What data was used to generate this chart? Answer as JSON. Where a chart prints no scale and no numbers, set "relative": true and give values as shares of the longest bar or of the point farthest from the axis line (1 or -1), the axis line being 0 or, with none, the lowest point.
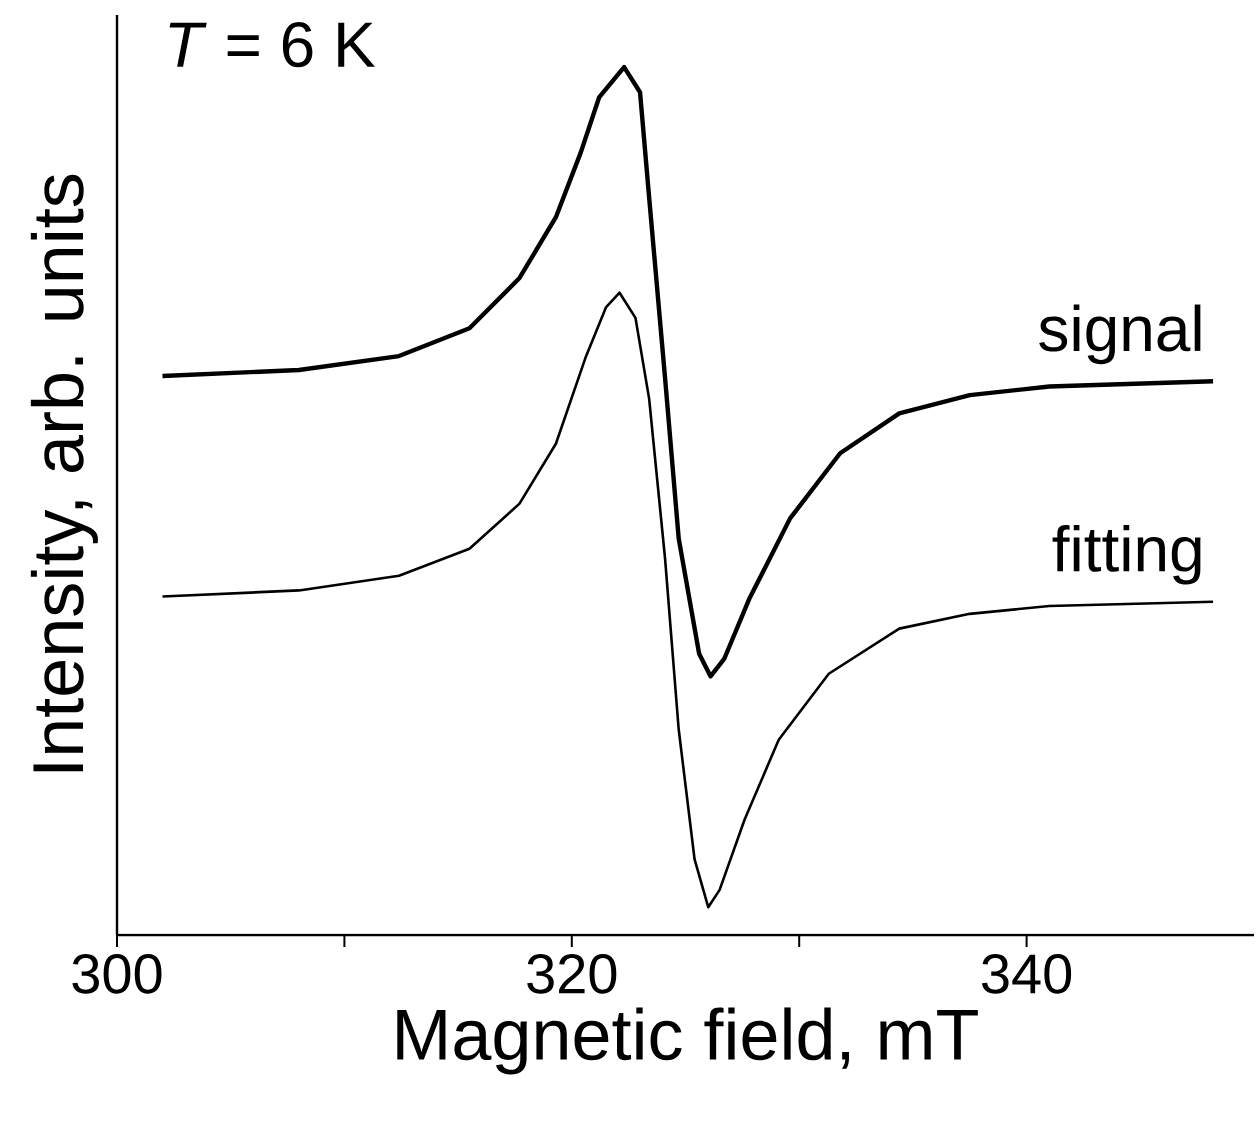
{
  "chart_data": {
    "type": "line",
    "relative": true,
    "xlabel": "Magnetic field, mT",
    "ylabel": "Intensity, arb. units",
    "annotations": [
      "*T* = 6 K"
    ],
    "xlim": [
      300,
      350
    ],
    "xticks": [
      300,
      {
        "value": 310,
        "label": null
      },
      320,
      {
        "value": 330,
        "label": null
      },
      340
    ],
    "series": [
      {
        "name": "signal",
        "color": "#000000",
        "x": [
          302.0,
          308.0,
          312.4,
          315.5,
          317.7,
          319.3,
          320.4,
          321.2,
          322.3,
          323.0,
          323.4,
          324.1,
          324.7,
          325.6,
          326.1,
          326.7,
          327.8,
          329.6,
          331.8,
          334.4,
          337.5,
          341.0,
          348.2
        ],
        "values": [
          0.644,
          0.651,
          0.667,
          0.699,
          0.757,
          0.827,
          0.902,
          0.965,
          1.0,
          0.971,
          0.85,
          0.642,
          0.457,
          0.324,
          0.298,
          0.318,
          0.387,
          0.48,
          0.555,
          0.601,
          0.622,
          0.632,
          0.638
        ]
      },
      {
        "name": "fitting",
        "color": "#000000",
        "x": [
          302.0,
          308.0,
          312.4,
          315.5,
          317.7,
          319.3,
          320.6,
          321.5,
          322.1,
          322.8,
          323.4,
          324.1,
          324.7,
          325.4,
          326.0,
          326.5,
          327.6,
          329.1,
          331.3,
          334.4,
          337.5,
          341.0,
          348.2
        ],
        "values": [
          0.39,
          0.397,
          0.414,
          0.445,
          0.497,
          0.566,
          0.665,
          0.723,
          0.74,
          0.711,
          0.618,
          0.434,
          0.237,
          0.087,
          0.032,
          0.052,
          0.133,
          0.225,
          0.301,
          0.353,
          0.37,
          0.379,
          0.384
        ]
      }
    ]
  }
}
